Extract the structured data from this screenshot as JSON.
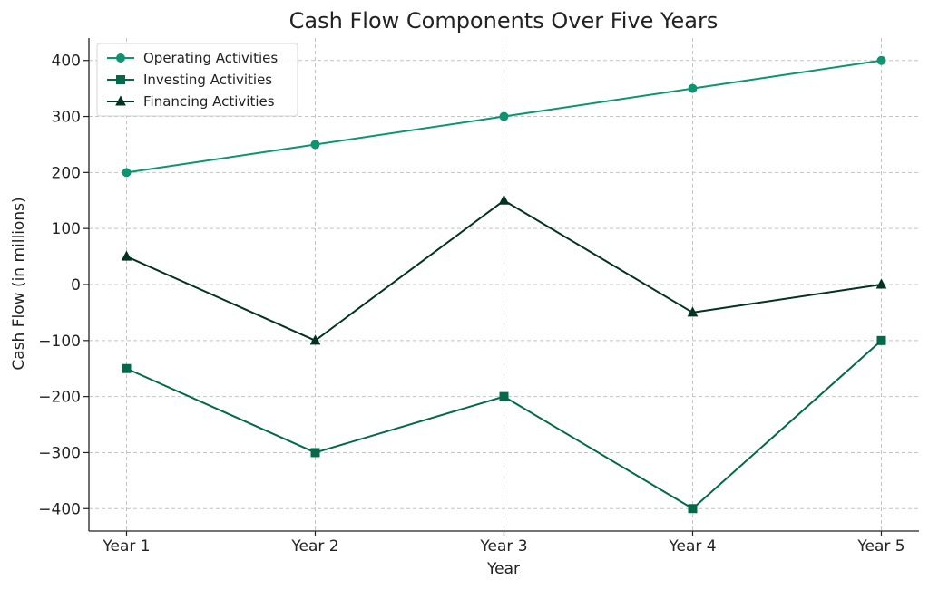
{
  "chart_data": {
    "type": "line",
    "title": "Cash Flow Components Over Five Years",
    "xlabel": "Year",
    "ylabel": "Cash Flow (in millions)",
    "categories": [
      "Year 1",
      "Year 2",
      "Year 3",
      "Year 4",
      "Year 5"
    ],
    "ylim": [
      -440,
      440
    ],
    "yticks": [
      -400,
      -300,
      -200,
      -100,
      0,
      100,
      200,
      300,
      400
    ],
    "grid": true,
    "legend_position": "top-left",
    "series": [
      {
        "name": "Operating Activities",
        "values": [
          200,
          250,
          300,
          350,
          400
        ],
        "color": "#0b9571",
        "marker": "circle"
      },
      {
        "name": "Investing Activities",
        "values": [
          -150,
          -300,
          -200,
          -400,
          -100
        ],
        "color": "#04694a",
        "marker": "square"
      },
      {
        "name": "Financing Activities",
        "values": [
          50,
          -100,
          150,
          -50,
          0
        ],
        "color": "#033322",
        "marker": "triangle"
      }
    ]
  }
}
